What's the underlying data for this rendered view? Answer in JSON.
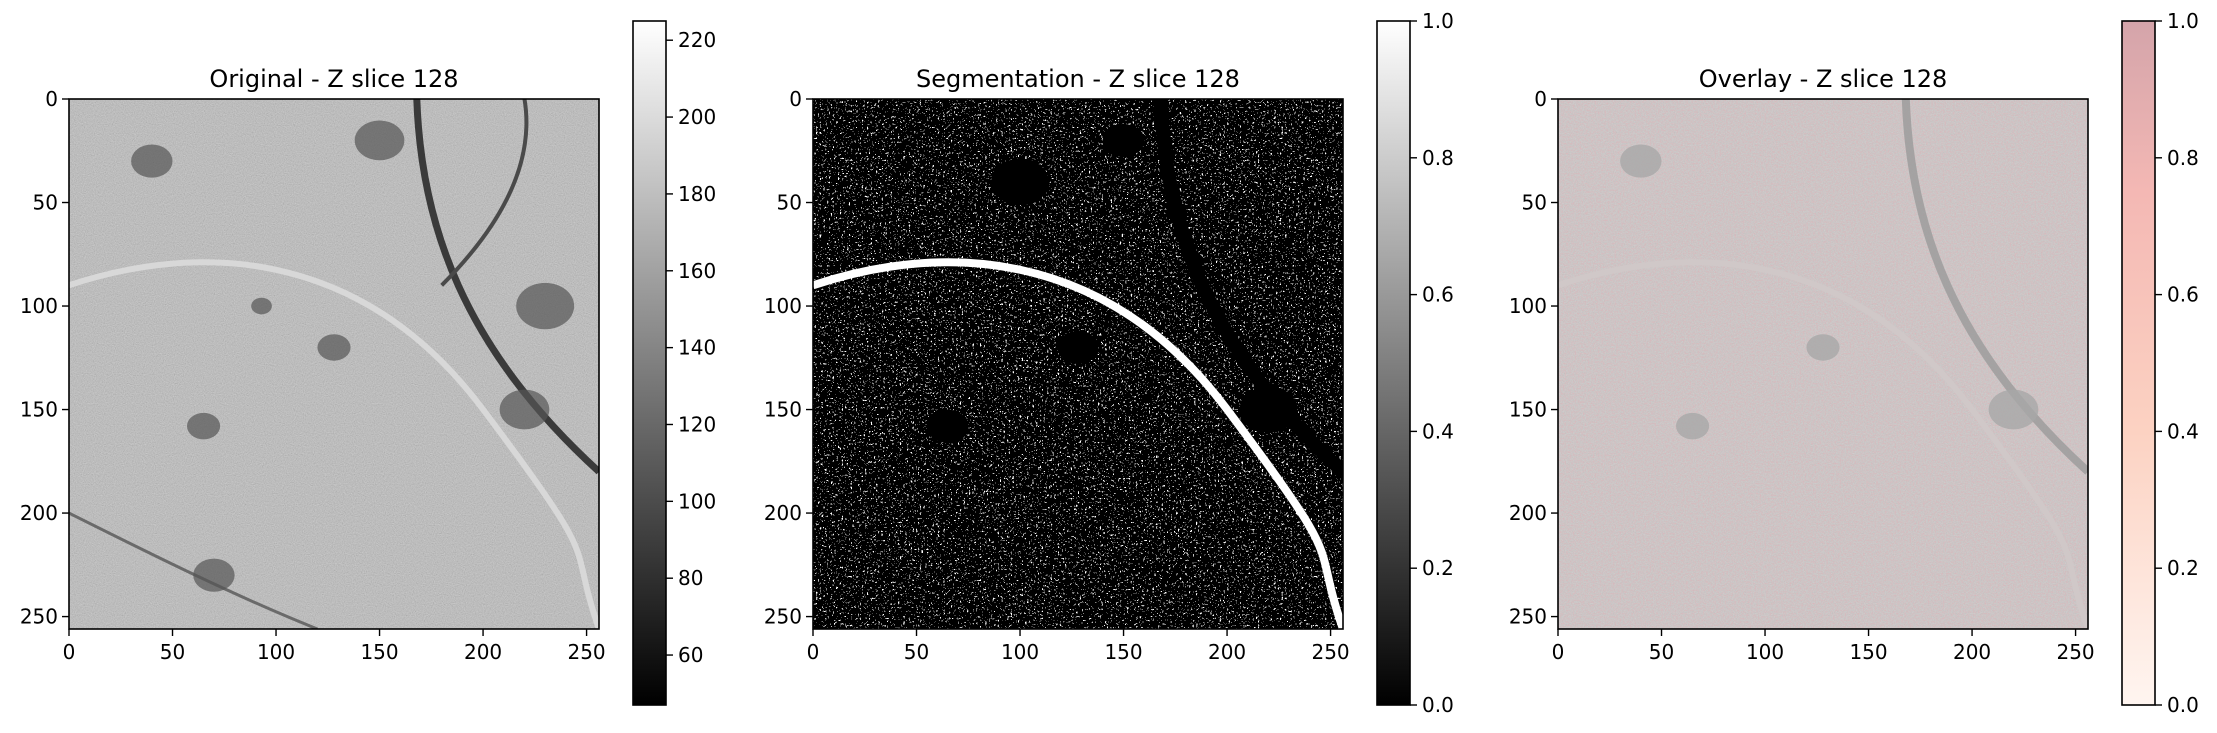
{
  "chart_data": [
    {
      "type": "heatmap",
      "title": "Original - Z slice 128",
      "colormap": "gray",
      "xticks": [
        "0",
        "50",
        "100",
        "150",
        "200",
        "250"
      ],
      "yticks": [
        "0",
        "50",
        "100",
        "150",
        "200",
        "250"
      ],
      "xlim": [
        0,
        256
      ],
      "ylim": [
        256,
        0
      ],
      "colorbar": {
        "range": [
          47,
          225
        ],
        "ticks": [
          "60",
          "80",
          "100",
          "120",
          "140",
          "160",
          "180",
          "200",
          "220"
        ],
        "colors": [
          "#000000",
          "#ffffff"
        ]
      },
      "grid": false
    },
    {
      "type": "heatmap",
      "title": "Segmentation - Z slice 128",
      "colormap": "gray",
      "xticks": [
        "0",
        "50",
        "100",
        "150",
        "200",
        "250"
      ],
      "yticks": [
        "0",
        "50",
        "100",
        "150",
        "200",
        "250"
      ],
      "xlim": [
        0,
        256
      ],
      "ylim": [
        256,
        0
      ],
      "colorbar": {
        "range": [
          0,
          1
        ],
        "ticks": [
          "0.0",
          "0.2",
          "0.4",
          "0.6",
          "0.8",
          "1.0"
        ],
        "colors": [
          "#000000",
          "#ffffff"
        ]
      },
      "grid": false
    },
    {
      "type": "heatmap",
      "title": "Overlay - Z slice 128",
      "colormap": "Reds (alpha overlay on gray)",
      "xticks": [
        "0",
        "50",
        "100",
        "150",
        "200",
        "250"
      ],
      "yticks": [
        "0",
        "50",
        "100",
        "150",
        "200",
        "250"
      ],
      "xlim": [
        0,
        256
      ],
      "ylim": [
        256,
        0
      ],
      "colorbar": {
        "range": [
          0,
          1
        ],
        "ticks": [
          "0.0",
          "0.2",
          "0.4",
          "0.6",
          "0.8",
          "1.0"
        ],
        "colors": [
          "#fff5f0",
          "#fcd2c2",
          "#f4aaa6",
          "#d4a4aa"
        ]
      },
      "grid": false
    }
  ]
}
